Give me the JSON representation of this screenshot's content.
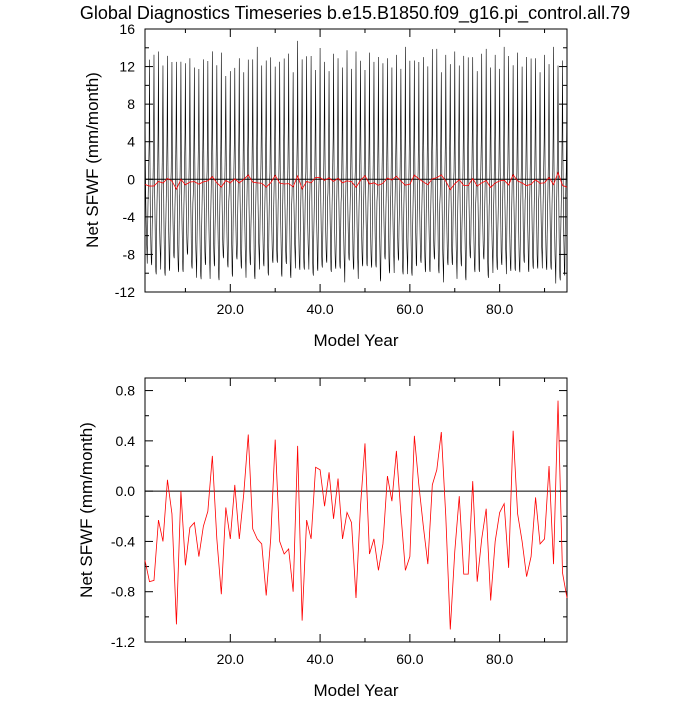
{
  "title": "Global Diagnostics Timeseries b.e15.B1850.f09_g16.pi_control.all.79",
  "colors": {
    "monthly": "#000000",
    "annual": "#ff0000",
    "zero_line": "#000000"
  },
  "chart_data": [
    {
      "type": "line",
      "xlabel": "Model Year",
      "ylabel": "Net SFWF (mm/month)",
      "xlim": [
        1,
        95
      ],
      "ylim": [
        -12,
        16
      ],
      "xticks": [
        20.0,
        40.0,
        60.0,
        80.0
      ],
      "xticklabels": [
        "20.0",
        "40.0",
        "60.0",
        "80.0"
      ],
      "yticks": [
        -12,
        -8,
        -4,
        0,
        4,
        8,
        12,
        16
      ],
      "yticklabels": [
        "-12",
        "-8",
        "-4",
        "0",
        "4",
        "8",
        "12",
        "16"
      ],
      "grid": false,
      "reference_line": 0,
      "series": [
        {
          "style": "monthly",
          "description_only": true,
          "seasonal_cycle_mm_month": [
            9.5,
            2.5,
            -2.0,
            -5.0,
            -7.5,
            -9.0,
            -9.5,
            -6.0,
            -3.0,
            -1.0,
            1.0,
            4.0
          ],
          "year_max_values": [
            10.5,
            12.5,
            13.5,
            13.0,
            12.0,
            13.5,
            12.0,
            12.5,
            13.0,
            12.0,
            13.0,
            12.5,
            11.5,
            13.0,
            12.0,
            13.5,
            12.5,
            13.0,
            11.0,
            12.0,
            11.5,
            13.0,
            12.0,
            12.5,
            13.0,
            13.5,
            12.0,
            13.0,
            12.5,
            12.0,
            13.0,
            12.5,
            13.5,
            12.0,
            14.5,
            13.0,
            12.5,
            13.0,
            12.0,
            13.5,
            12.5,
            12.0,
            13.0,
            13.0,
            12.5,
            13.5,
            12.0,
            13.0,
            12.5,
            12.0,
            13.0,
            12.5,
            13.5,
            12.0,
            13.0,
            12.5,
            13.0,
            12.0,
            13.5,
            12.5,
            13.0,
            12.0,
            13.0,
            12.5,
            13.5,
            14.0,
            12.0,
            13.0,
            12.5,
            13.0,
            12.0,
            13.5,
            12.5,
            13.0,
            12.0,
            13.0,
            14.0,
            12.5,
            13.0,
            12.0,
            13.5,
            13.0,
            12.5,
            13.0,
            12.0,
            13.5,
            12.5,
            13.0,
            12.0,
            13.0,
            12.5,
            13.5,
            12.0,
            13.0,
            12.5
          ],
          "year_min_values": [
            -8.5,
            -9.5,
            -10.0,
            -9.0,
            -10.5,
            -9.5,
            -9.0,
            -10.0,
            -9.5,
            -8.5,
            -9.5,
            -10.0,
            -11.0,
            -9.0,
            -10.0,
            -9.5,
            -10.5,
            -9.0,
            -9.5,
            -10.0,
            -9.0,
            -9.5,
            -10.0,
            -9.5,
            -10.5,
            -9.0,
            -9.5,
            -10.0,
            -9.5,
            -9.0,
            -10.0,
            -9.5,
            -10.5,
            -9.0,
            -10.0,
            -9.5,
            -9.0,
            -10.5,
            -9.5,
            -10.0,
            -9.0,
            -9.5,
            -10.0,
            -9.5,
            -10.5,
            -9.0,
            -9.5,
            -10.0,
            -9.5,
            -9.0,
            -10.0,
            -9.5,
            -10.5,
            -9.0,
            -10.0,
            -9.5,
            -9.0,
            -10.0,
            -9.5,
            -10.5,
            -9.0,
            -9.5,
            -10.0,
            -9.5,
            -9.0,
            -10.0,
            -10.5,
            -9.5,
            -9.0,
            -10.0,
            -9.5,
            -10.5,
            -9.0,
            -10.0,
            -9.5,
            -9.0,
            -10.5,
            -9.5,
            -10.0,
            -9.0,
            -9.5,
            -10.0,
            -9.5,
            -10.5,
            -9.0,
            -9.5,
            -10.0,
            -9.5,
            -9.0,
            -10.0,
            -9.5,
            -10.5,
            -11.0,
            -10.0,
            -9.5
          ]
        },
        {
          "style": "annual",
          "x": [
            1,
            2,
            3,
            4,
            5,
            6,
            7,
            8,
            9,
            10,
            11,
            12,
            13,
            14,
            15,
            16,
            17,
            18,
            19,
            20,
            21,
            22,
            23,
            24,
            25,
            26,
            27,
            28,
            29,
            30,
            31,
            32,
            33,
            34,
            35,
            36,
            37,
            38,
            39,
            40,
            41,
            42,
            43,
            44,
            45,
            46,
            47,
            48,
            49,
            50,
            51,
            52,
            53,
            54,
            55,
            56,
            57,
            58,
            59,
            60,
            61,
            62,
            63,
            64,
            65,
            66,
            67,
            68,
            69,
            70,
            71,
            72,
            73,
            74,
            75,
            76,
            77,
            78,
            79,
            80,
            81,
            82,
            83,
            84,
            85,
            86,
            87,
            88,
            89,
            90,
            91,
            92,
            93,
            94,
            95
          ],
          "values": [
            -0.55,
            -0.72,
            -0.71,
            -0.23,
            -0.4,
            0.09,
            -0.18,
            -1.06,
            0.0,
            -0.59,
            -0.29,
            -0.25,
            -0.52,
            -0.28,
            -0.16,
            0.28,
            -0.38,
            -0.82,
            -0.13,
            -0.38,
            0.05,
            -0.38,
            -0.02,
            0.45,
            -0.3,
            -0.38,
            -0.42,
            -0.83,
            -0.38,
            0.41,
            -0.4,
            -0.5,
            -0.46,
            -0.8,
            0.36,
            -1.03,
            -0.23,
            -0.38,
            0.19,
            0.17,
            -0.12,
            0.15,
            -0.22,
            0.1,
            -0.38,
            -0.17,
            -0.25,
            -0.85,
            -0.12,
            0.38,
            -0.5,
            -0.38,
            -0.63,
            -0.42,
            0.12,
            -0.08,
            0.32,
            -0.18,
            -0.63,
            -0.52,
            0.44,
            0.05,
            -0.28,
            -0.58,
            0.05,
            0.17,
            0.47,
            -0.2,
            -1.1,
            -0.48,
            -0.04,
            -0.66,
            -0.66,
            0.08,
            -0.72,
            -0.38,
            -0.14,
            -0.87,
            -0.4,
            -0.17,
            -0.1,
            -0.61,
            0.48,
            -0.18,
            -0.4,
            -0.68,
            -0.52,
            -0.05,
            -0.42,
            -0.38,
            0.2,
            -0.58,
            0.72,
            -0.65,
            -0.85
          ]
        }
      ]
    },
    {
      "type": "line",
      "xlabel": "Model Year",
      "ylabel": "Net SFWF (mm/month)",
      "xlim": [
        1,
        95
      ],
      "ylim": [
        -1.2,
        0.9
      ],
      "xticks": [
        20.0,
        40.0,
        60.0,
        80.0
      ],
      "xticklabels": [
        "20.0",
        "40.0",
        "60.0",
        "80.0"
      ],
      "yticks": [
        -1.2,
        -0.8,
        -0.4,
        0.0,
        0.4,
        0.8
      ],
      "yticklabels": [
        "-1.2",
        "-0.8",
        "-0.4",
        "0.0",
        "0.4",
        "0.8"
      ],
      "grid": false,
      "reference_line": 0,
      "series": [
        {
          "style": "annual",
          "x": [
            1,
            2,
            3,
            4,
            5,
            6,
            7,
            8,
            9,
            10,
            11,
            12,
            13,
            14,
            15,
            16,
            17,
            18,
            19,
            20,
            21,
            22,
            23,
            24,
            25,
            26,
            27,
            28,
            29,
            30,
            31,
            32,
            33,
            34,
            35,
            36,
            37,
            38,
            39,
            40,
            41,
            42,
            43,
            44,
            45,
            46,
            47,
            48,
            49,
            50,
            51,
            52,
            53,
            54,
            55,
            56,
            57,
            58,
            59,
            60,
            61,
            62,
            63,
            64,
            65,
            66,
            67,
            68,
            69,
            70,
            71,
            72,
            73,
            74,
            75,
            76,
            77,
            78,
            79,
            80,
            81,
            82,
            83,
            84,
            85,
            86,
            87,
            88,
            89,
            90,
            91,
            92,
            93,
            94,
            95
          ],
          "values": [
            -0.55,
            -0.72,
            -0.71,
            -0.23,
            -0.4,
            0.09,
            -0.18,
            -1.06,
            0.0,
            -0.59,
            -0.29,
            -0.25,
            -0.52,
            -0.28,
            -0.16,
            0.28,
            -0.38,
            -0.82,
            -0.13,
            -0.38,
            0.05,
            -0.38,
            -0.02,
            0.45,
            -0.3,
            -0.38,
            -0.42,
            -0.83,
            -0.38,
            0.41,
            -0.4,
            -0.5,
            -0.46,
            -0.8,
            0.36,
            -1.03,
            -0.23,
            -0.38,
            0.19,
            0.17,
            -0.12,
            0.15,
            -0.22,
            0.1,
            -0.38,
            -0.17,
            -0.25,
            -0.85,
            -0.12,
            0.38,
            -0.5,
            -0.38,
            -0.63,
            -0.42,
            0.12,
            -0.08,
            0.32,
            -0.18,
            -0.63,
            -0.52,
            0.44,
            0.05,
            -0.28,
            -0.58,
            0.05,
            0.17,
            0.47,
            -0.2,
            -1.1,
            -0.48,
            -0.04,
            -0.66,
            -0.66,
            0.08,
            -0.72,
            -0.38,
            -0.14,
            -0.87,
            -0.4,
            -0.17,
            -0.1,
            -0.61,
            0.48,
            -0.18,
            -0.4,
            -0.68,
            -0.52,
            -0.05,
            -0.42,
            -0.38,
            0.2,
            -0.58,
            0.72,
            -0.65,
            -0.85
          ]
        }
      ]
    }
  ]
}
